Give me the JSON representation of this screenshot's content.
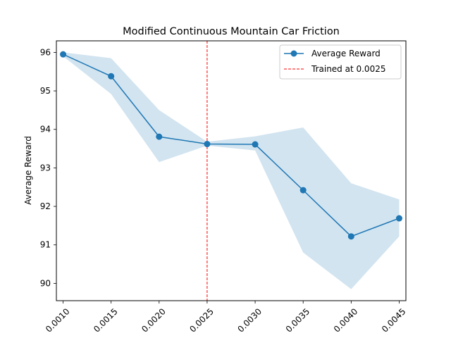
{
  "chart_data": {
    "type": "line",
    "title": "Modified Continuous Mountain Car Friction",
    "xlabel": "",
    "ylabel": "Average Reward",
    "x": [
      0.001,
      0.0015,
      0.002,
      0.0025,
      0.003,
      0.0035,
      0.004,
      0.0045
    ],
    "x_tick_labels": [
      "0.0010",
      "0.0015",
      "0.0020",
      "0.0025",
      "0.0030",
      "0.0035",
      "0.0040",
      "0.0045"
    ],
    "y_ticks": [
      90,
      91,
      92,
      93,
      94,
      95,
      96
    ],
    "y_tick_labels": [
      "90",
      "91",
      "92",
      "93",
      "94",
      "95",
      "96"
    ],
    "xlim": [
      0.00093,
      0.00457
    ],
    "ylim": [
      89.55,
      96.3
    ],
    "grid": false,
    "legend_placement": "top-right",
    "series": [
      {
        "name": "Average Reward",
        "values": [
          95.95,
          95.38,
          93.81,
          93.62,
          93.61,
          92.42,
          91.22,
          91.69
        ],
        "band_upper": [
          96.0,
          95.85,
          94.5,
          93.68,
          93.82,
          94.05,
          92.6,
          92.18
        ],
        "band_lower": [
          95.9,
          94.92,
          93.15,
          93.58,
          93.45,
          90.8,
          89.85,
          91.22
        ],
        "color": "#1f77b4",
        "band_color": "#1f77b4"
      }
    ],
    "reference_line": {
      "name": "Trained at 0.0025",
      "x": 0.0025,
      "color": "#ff0000",
      "style": "dashed"
    }
  }
}
